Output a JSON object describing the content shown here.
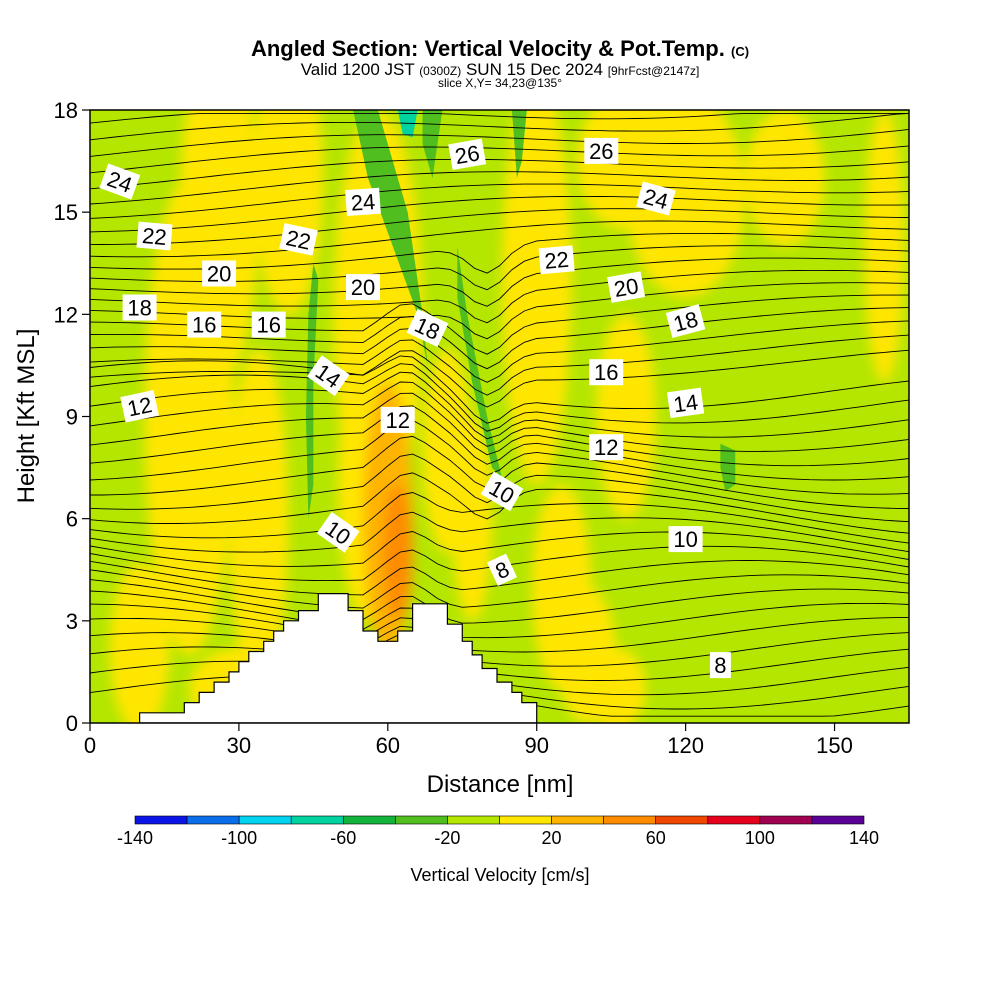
{
  "title": "Angled Section: Vertical Velocity & Pot.Temp.",
  "title_suffix": "(C)",
  "subtitle_main": "Valid 1200 JST",
  "subtitle_utc": "(0300Z)",
  "subtitle_date": "SUN 15 Dec 2024",
  "subtitle_fcst": "[9hrFcst@2147z]",
  "slice_text": "slice X,Y= 34,23@135°",
  "chart_data": {
    "type": "contour",
    "xlabel": "Distance [nm]",
    "ylabel": "Height [Kft MSL]",
    "xlim": [
      0,
      165
    ],
    "ylim": [
      0,
      18
    ],
    "xticks": [
      0,
      30,
      60,
      90,
      120,
      150
    ],
    "yticks": [
      0,
      3,
      6,
      9,
      12,
      15,
      18
    ],
    "colorbar": {
      "title": "Vertical Velocity [cm/s]",
      "boundaries": [
        -140,
        -120,
        -100,
        -80,
        -60,
        -40,
        -20,
        0,
        20,
        40,
        60,
        80,
        100,
        120,
        140
      ],
      "tick_labels": [
        "-140",
        "-100",
        "-60",
        "-20",
        "20",
        "60",
        "100",
        "140"
      ],
      "colors": [
        "#0a14e6",
        "#0a6eea",
        "#00d2f0",
        "#00d2a0",
        "#14b43c",
        "#50be1e",
        "#b4e600",
        "#ffe600",
        "#ffb400",
        "#ff8c00",
        "#f04600",
        "#e6001e",
        "#a00050",
        "#5a0096"
      ]
    },
    "terrain_profile": [
      [
        10,
        0.3
      ],
      [
        19,
        0.6
      ],
      [
        22,
        0.9
      ],
      [
        25,
        1.2
      ],
      [
        28,
        1.5
      ],
      [
        30,
        1.8
      ],
      [
        32,
        2.1
      ],
      [
        35,
        2.4
      ],
      [
        37,
        2.7
      ],
      [
        39,
        3.0
      ],
      [
        42,
        3.3
      ],
      [
        46,
        3.8
      ],
      [
        52,
        3.3
      ],
      [
        55,
        2.7
      ],
      [
        58,
        2.4
      ],
      [
        62,
        2.7
      ],
      [
        65,
        3.5
      ],
      [
        72,
        2.9
      ],
      [
        75,
        2.4
      ],
      [
        77,
        2.0
      ],
      [
        79,
        1.6
      ],
      [
        82,
        1.2
      ],
      [
        85,
        0.9
      ],
      [
        87,
        0.6
      ],
      [
        90,
        0.3
      ]
    ],
    "theta_contours": {
      "interval": 1,
      "labels": [
        {
          "text": "24",
          "x": 6,
          "y": 15.9,
          "angle": 20
        },
        {
          "text": "22",
          "x": 13,
          "y": 14.3,
          "angle": 5
        },
        {
          "text": "20",
          "x": 26,
          "y": 13.2,
          "angle": 0
        },
        {
          "text": "18",
          "x": 10,
          "y": 12.2,
          "angle": 0
        },
        {
          "text": "16",
          "x": 23,
          "y": 11.7,
          "angle": 0
        },
        {
          "text": "16",
          "x": 36,
          "y": 11.7,
          "angle": 0
        },
        {
          "text": "12",
          "x": 10,
          "y": 9.3,
          "angle": -12
        },
        {
          "text": "22",
          "x": 42,
          "y": 14.2,
          "angle": 12
        },
        {
          "text": "24",
          "x": 55,
          "y": 15.3,
          "angle": -4
        },
        {
          "text": "26",
          "x": 76,
          "y": 16.7,
          "angle": -10
        },
        {
          "text": "26",
          "x": 103,
          "y": 16.8,
          "angle": 0
        },
        {
          "text": "24",
          "x": 114,
          "y": 15.4,
          "angle": 15
        },
        {
          "text": "20",
          "x": 55,
          "y": 12.8,
          "angle": 0
        },
        {
          "text": "22",
          "x": 94,
          "y": 13.6,
          "angle": -5
        },
        {
          "text": "20",
          "x": 108,
          "y": 12.8,
          "angle": -10
        },
        {
          "text": "18",
          "x": 68,
          "y": 11.6,
          "angle": 25
        },
        {
          "text": "18",
          "x": 120,
          "y": 11.8,
          "angle": -15
        },
        {
          "text": "14",
          "x": 48,
          "y": 10.2,
          "angle": 35
        },
        {
          "text": "16",
          "x": 104,
          "y": 10.3,
          "angle": 0
        },
        {
          "text": "14",
          "x": 120,
          "y": 9.4,
          "angle": -8
        },
        {
          "text": "12",
          "x": 62,
          "y": 8.9,
          "angle": 0
        },
        {
          "text": "12",
          "x": 104,
          "y": 8.1,
          "angle": 0
        },
        {
          "text": "10",
          "x": 83,
          "y": 6.8,
          "angle": 30
        },
        {
          "text": "10",
          "x": 50,
          "y": 5.6,
          "angle": 35
        },
        {
          "text": "10",
          "x": 120,
          "y": 5.4,
          "angle": 0
        },
        {
          "text": "8",
          "x": 83,
          "y": 4.5,
          "angle": -25
        },
        {
          "text": "8",
          "x": 127,
          "y": 1.7,
          "angle": 0
        }
      ]
    }
  }
}
